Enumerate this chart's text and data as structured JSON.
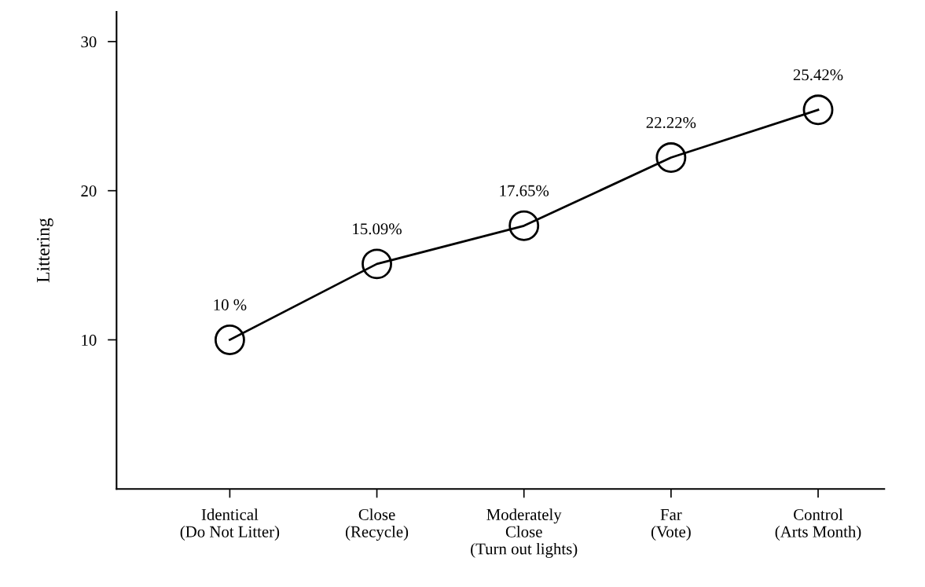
{
  "chart_data": {
    "type": "line",
    "ylabel": "Littering",
    "categories": [
      "Identical\n(Do Not Litter)",
      "Close\n(Recycle)",
      "Moderately\nClose\n(Turn out lights)",
      "Far\n(Vote)",
      "Control\n(Arts Month)"
    ],
    "series": [
      {
        "color": "#000000",
        "values": [
          10,
          15.09,
          17.65,
          22.22,
          25.42
        ],
        "value_labels": [
          "10 %",
          "15.09%",
          "17.65%",
          "22.22%",
          "25.42%"
        ]
      }
    ],
    "ylim": [
      0,
      32
    ],
    "yticks": [
      10,
      20,
      30
    ],
    "marker": "circle",
    "line_style": "solid",
    "grid": false,
    "legend": false
  }
}
